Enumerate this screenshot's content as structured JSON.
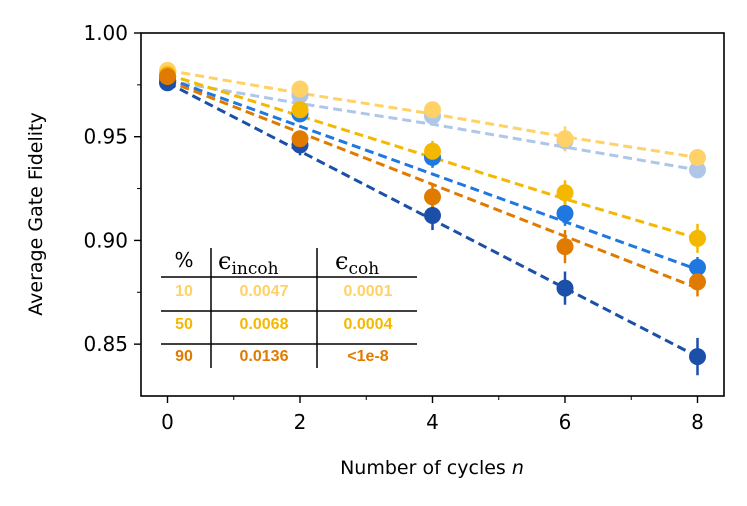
{
  "chart_data": {
    "type": "line",
    "title": "",
    "xlabel": "Number of cycles ",
    "xlabel_var": "n",
    "ylabel": "Average Gate Fidelity",
    "xlim": [
      -0.4,
      8.4
    ],
    "ylim": [
      0.825,
      1.0
    ],
    "x_ticks": [
      0,
      2,
      4,
      6,
      8
    ],
    "x_tick_labels": [
      "0",
      "2",
      "4",
      "6",
      "8"
    ],
    "y_ticks": [
      0.85,
      0.9,
      0.95,
      1.0
    ],
    "y_tick_labels": [
      "0.85",
      "0.90",
      "0.95",
      "1.00"
    ],
    "x": [
      0,
      2,
      4,
      6,
      8
    ],
    "series": [
      {
        "color": "#aec7e8",
        "values": [
          0.977,
          0.97,
          0.96,
          0.948,
          0.934
        ],
        "err": [
          0.002,
          0.003,
          0.004,
          0.005,
          0.004
        ],
        "fit": [
          0.977,
          0.966,
          0.956,
          0.945,
          0.934
        ]
      },
      {
        "color": "#ffd166",
        "values": [
          0.982,
          0.973,
          0.963,
          0.949,
          0.94
        ],
        "err": [
          0.002,
          0.003,
          0.004,
          0.006,
          0.004
        ],
        "fit": [
          0.982,
          0.971,
          0.961,
          0.95,
          0.94
        ]
      },
      {
        "color": "#1f77e0",
        "values": [
          0.978,
          0.961,
          0.94,
          0.913,
          0.887
        ],
        "err": [
          0.002,
          0.004,
          0.005,
          0.006,
          0.005
        ],
        "fit": [
          0.978,
          0.955,
          0.932,
          0.909,
          0.886
        ]
      },
      {
        "color": "#f5b800",
        "values": [
          0.98,
          0.963,
          0.943,
          0.923,
          0.901
        ],
        "err": [
          0.002,
          0.004,
          0.005,
          0.006,
          0.007
        ],
        "fit": [
          0.98,
          0.96,
          0.94,
          0.92,
          0.901
        ]
      },
      {
        "color": "#1b4fa8",
        "values": [
          0.976,
          0.946,
          0.912,
          0.877,
          0.844
        ],
        "err": [
          0.002,
          0.005,
          0.007,
          0.008,
          0.009
        ],
        "fit": [
          0.976,
          0.943,
          0.91,
          0.877,
          0.844
        ]
      },
      {
        "color": "#e07b00",
        "values": [
          0.979,
          0.949,
          0.921,
          0.897,
          0.88
        ],
        "err": [
          0.002,
          0.004,
          0.006,
          0.008,
          0.007
        ],
        "fit": [
          0.977,
          0.952,
          0.927,
          0.902,
          0.877
        ]
      }
    ],
    "table": {
      "header_pct": "%",
      "header_incoh": "ϵ",
      "header_incoh_sub": "incoh",
      "header_coh": "ϵ",
      "header_coh_sub": "coh",
      "rows": [
        {
          "pct": "10",
          "incoh": "0.0047",
          "coh": "0.0001",
          "color": "#ffd166"
        },
        {
          "pct": "50",
          "incoh": "0.0068",
          "coh": "0.0004",
          "color": "#f5b800"
        },
        {
          "pct": "90",
          "incoh": "0.0136",
          "coh": "<1e-8",
          "color": "#e07b00"
        }
      ]
    }
  }
}
